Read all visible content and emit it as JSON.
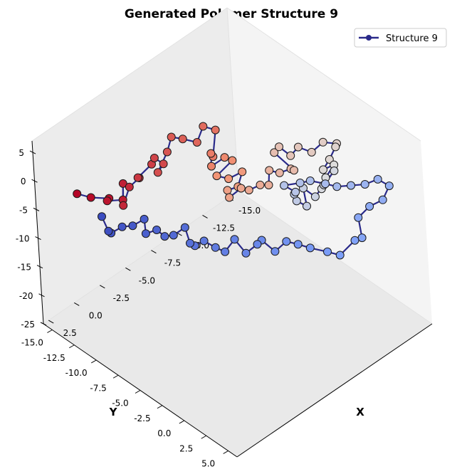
{
  "chart_data": {
    "type": "scatter",
    "title": "Generated Polymer Structure 9",
    "xlabel": "X",
    "ylabel": "Y",
    "zlabel": "",
    "legend": {
      "label": "Structure 9",
      "placement": "top-right",
      "marker_color": "#2a2a8a"
    },
    "colors": {
      "line": "#2a2a8a",
      "pane_left": "#ececec",
      "pane_right": "#f4f4f4",
      "pane_floor": "#e9e9e9",
      "marker_edge": "#1a1a1a",
      "colormap": "coolwarm"
    },
    "x_ticks": [
      "-15.0",
      "-12.5",
      "-10.0",
      "-7.5",
      "-5.0",
      "-2.5",
      "0.0",
      "2.5"
    ],
    "y_ticks": [
      "-15.0",
      "-12.5",
      "-10.0",
      "-7.5",
      "-5.0",
      "-2.5",
      "0.0",
      "2.5",
      "5.0"
    ],
    "z_ticks": [
      "5",
      "0",
      "-5",
      "-10",
      "-15",
      "-20",
      "-25"
    ],
    "xlim": [
      -16,
      3
    ],
    "ylim": [
      -16,
      6
    ],
    "zlim": [
      -25,
      7
    ],
    "grid": false,
    "point_count": 100,
    "points": [
      [
        -0.5,
        -15.5,
        -6.0
      ],
      [
        -0.6,
        -14.0,
        -5.2
      ],
      [
        -1.5,
        -13.0,
        -5.4
      ],
      [
        -1.0,
        -12.6,
        -4.8
      ],
      [
        -2.0,
        -12.0,
        -5.2
      ],
      [
        -2.5,
        -12.5,
        -3.5
      ],
      [
        -2.0,
        -12.0,
        -6.2
      ],
      [
        -3.0,
        -12.4,
        -4.6
      ],
      [
        -3.5,
        -11.8,
        -3.0
      ],
      [
        -4.0,
        -12.6,
        -4.4
      ],
      [
        -4.5,
        -11.5,
        -1.5
      ],
      [
        -5.5,
        -12.4,
        -2.6
      ],
      [
        -6.0,
        -12.0,
        -3.8
      ],
      [
        -4.8,
        -11.2,
        -3.0
      ],
      [
        -5.0,
        -10.2,
        1.4
      ],
      [
        -6.5,
        -11.5,
        0.8
      ],
      [
        -7.0,
        -10.8,
        0.6
      ],
      [
        -8.0,
        -10.4,
        -0.8
      ],
      [
        -8.5,
        -10.2,
        1.6
      ],
      [
        -9.0,
        -9.4,
        1.2
      ],
      [
        -8.0,
        -8.6,
        -1.4
      ],
      [
        -7.5,
        -8.2,
        0.2
      ],
      [
        -7.0,
        -7.6,
        -0.8
      ],
      [
        -7.5,
        -6.6,
        1.2
      ],
      [
        -8.2,
        -6.6,
        -0.2
      ],
      [
        -6.5,
        -6.4,
        -0.6
      ],
      [
        -6.8,
        -5.4,
        -0.4
      ],
      [
        -7.8,
        -5.0,
        0.0
      ],
      [
        -7.0,
        -4.6,
        -1.2
      ],
      [
        -6.0,
        -4.6,
        -0.6
      ],
      [
        -5.5,
        -3.8,
        -0.4
      ],
      [
        -6.5,
        -3.6,
        0.2
      ],
      [
        -6.6,
        -2.8,
        0.6
      ],
      [
        -7.2,
        -2.2,
        1.4
      ],
      [
        -8.0,
        -2.2,
        0.4
      ],
      [
        -8.6,
        -2.8,
        1.6
      ],
      [
        -9.4,
        -2.6,
        0.4
      ],
      [
        -10.0,
        -2.0,
        1.0
      ],
      [
        -10.6,
        -2.4,
        -0.4
      ],
      [
        -9.8,
        -3.6,
        2.4
      ],
      [
        -10.6,
        -4.0,
        2.0
      ],
      [
        -11.0,
        -3.2,
        0.8
      ],
      [
        -11.6,
        -3.0,
        1.8
      ],
      [
        -12.2,
        -2.2,
        1.0
      ],
      [
        -13.0,
        -1.8,
        2.2
      ],
      [
        -13.8,
        -1.2,
        1.6
      ],
      [
        -13.2,
        -0.6,
        2.4
      ],
      [
        -12.4,
        -0.4,
        1.4
      ],
      [
        -11.6,
        -0.2,
        0.8
      ],
      [
        -12.0,
        0.6,
        2.0
      ],
      [
        -11.0,
        0.8,
        1.2
      ],
      [
        -10.4,
        1.0,
        0.2
      ],
      [
        -11.2,
        1.6,
        3.0
      ],
      [
        -10.0,
        1.8,
        2.2
      ],
      [
        -9.6,
        1.2,
        0.0
      ],
      [
        -9.0,
        0.6,
        1.6
      ],
      [
        -8.6,
        1.4,
        -0.2
      ],
      [
        -8.0,
        1.0,
        1.0
      ],
      [
        -8.6,
        0.0,
        0.4
      ],
      [
        -9.2,
        -0.6,
        -0.6
      ],
      [
        -8.8,
        -1.4,
        0.2
      ],
      [
        -10.0,
        -1.0,
        -0.4
      ],
      [
        -10.8,
        -0.8,
        -0.8
      ],
      [
        -11.4,
        0.2,
        -1.0
      ],
      [
        -12.0,
        0.8,
        -1.6
      ],
      [
        -13.0,
        1.2,
        -2.2
      ],
      [
        -14.0,
        1.6,
        -2.8
      ],
      [
        -14.6,
        2.4,
        -1.8
      ],
      [
        -15.0,
        3.2,
        -2.6
      ],
      [
        -14.0,
        3.6,
        -3.4
      ],
      [
        -13.2,
        3.0,
        -4.2
      ],
      [
        -12.4,
        2.6,
        -5.6
      ],
      [
        -12.0,
        3.4,
        -7.8
      ],
      [
        -11.0,
        3.8,
        -6.6
      ],
      [
        -10.0,
        3.2,
        -8.6
      ],
      [
        -9.0,
        3.0,
        -7.0
      ],
      [
        -8.2,
        2.0,
        -6.4
      ],
      [
        -7.4,
        1.6,
        -5.2
      ],
      [
        -6.8,
        1.0,
        -4.6
      ],
      [
        -6.0,
        0.6,
        -5.8
      ],
      [
        -5.6,
        -0.4,
        -4.4
      ],
      [
        -5.8,
        -1.2,
        -6.2
      ],
      [
        -5.0,
        -1.6,
        -7.2
      ],
      [
        -4.8,
        -2.6,
        -5.6
      ],
      [
        -4.0,
        -2.8,
        -7.0
      ],
      [
        -3.6,
        -3.4,
        -6.4
      ],
      [
        -3.2,
        -4.2,
        -5.6
      ],
      [
        -2.8,
        -4.8,
        -6.6
      ],
      [
        -2.2,
        -4.6,
        -5.2
      ],
      [
        -2.6,
        -5.6,
        -4.0
      ],
      [
        -1.8,
        -6.0,
        -4.8
      ],
      [
        -1.6,
        -6.8,
        -5.6
      ],
      [
        -1.2,
        -7.2,
        -4.4
      ],
      [
        -0.8,
        -8.0,
        -5.4
      ],
      [
        -1.2,
        -8.6,
        -4.0
      ],
      [
        -0.4,
        -9.0,
        -4.6
      ],
      [
        -0.2,
        -10.0,
        -5.6
      ],
      [
        0.4,
        -10.6,
        -6.6
      ],
      [
        0.0,
        -11.4,
        -7.6
      ],
      [
        -0.4,
        -12.6,
        -6.8
      ]
    ]
  }
}
